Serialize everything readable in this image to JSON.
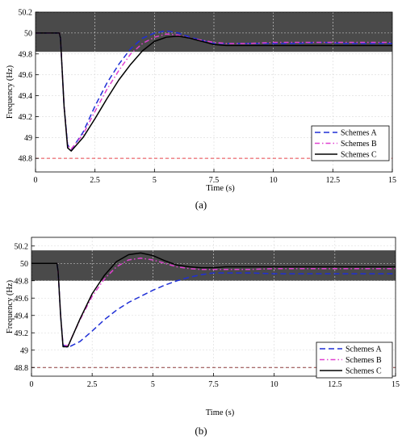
{
  "chart_data": [
    {
      "type": "line",
      "panel_label": "(a)",
      "xlabel": "Time (s)",
      "ylabel": "Frequency (Hz)",
      "xlim": [
        0,
        15
      ],
      "ylim": [
        48.67,
        50.2
      ],
      "xticks": [
        0,
        2.5,
        5,
        7.5,
        10,
        12.5,
        15
      ],
      "xtick_labels": [
        "0",
        "2.5",
        "5",
        "7.5",
        "10",
        "12.5",
        "15"
      ],
      "yticks": [
        48.8,
        49,
        49.2,
        49.4,
        49.6,
        49.8,
        50,
        50.2
      ],
      "ytick_labels": [
        "48.8",
        "49",
        "49.2",
        "49.4",
        "49.6",
        "49.8",
        "50",
        "50.2"
      ],
      "grid": true,
      "legend_position": "bottom-right",
      "band": {
        "from": 49.82,
        "to": 50.2,
        "color": "#4a4a4a"
      },
      "reference_line": {
        "y": 48.8,
        "color": "#e8434a",
        "style": "dashed"
      },
      "series": [
        {
          "name": "Schemes A",
          "color": "#1f2fd6",
          "style": "dashed",
          "x": [
            0,
            1,
            1.05,
            1.2,
            1.35,
            1.5,
            2,
            2.5,
            3,
            3.5,
            4,
            4.5,
            5,
            5.5,
            6,
            6.5,
            7,
            7.5,
            8,
            9,
            10,
            11,
            12,
            13,
            14,
            15
          ],
          "y": [
            50,
            50,
            49.95,
            49.3,
            48.93,
            48.88,
            49.05,
            49.3,
            49.52,
            49.7,
            49.85,
            49.95,
            50.0,
            50.02,
            50.0,
            49.96,
            49.93,
            49.9,
            49.9,
            49.9,
            49.9,
            49.9,
            49.91,
            49.9,
            49.9,
            49.9
          ]
        },
        {
          "name": "Schemes B",
          "color": "#e040d0",
          "style": "dashdot",
          "x": [
            0,
            1,
            1.05,
            1.2,
            1.35,
            1.5,
            2,
            2.5,
            3,
            3.5,
            4,
            4.5,
            5,
            5.5,
            6,
            6.5,
            7,
            7.5,
            8,
            9,
            10,
            11,
            12,
            13,
            14,
            15
          ],
          "y": [
            50,
            50,
            49.95,
            49.3,
            48.92,
            48.89,
            49.03,
            49.25,
            49.46,
            49.64,
            49.8,
            49.9,
            49.96,
            49.99,
            49.98,
            49.95,
            49.93,
            49.91,
            49.9,
            49.9,
            49.91,
            49.91,
            49.91,
            49.91,
            49.91,
            49.91
          ]
        },
        {
          "name": "Schemes C",
          "color": "#000000",
          "style": "solid",
          "x": [
            0,
            1,
            1.05,
            1.2,
            1.35,
            1.5,
            2,
            2.5,
            3,
            3.5,
            4,
            4.5,
            5,
            5.5,
            6,
            6.5,
            7,
            7.5,
            8,
            9,
            10,
            11,
            12,
            13,
            14,
            15
          ],
          "y": [
            50,
            50,
            49.95,
            49.3,
            48.9,
            48.87,
            49.0,
            49.18,
            49.37,
            49.55,
            49.7,
            49.83,
            49.92,
            49.96,
            49.97,
            49.95,
            49.92,
            49.89,
            49.88,
            49.88,
            49.88,
            49.88,
            49.88,
            49.88,
            49.88,
            49.88
          ]
        }
      ]
    },
    {
      "type": "line",
      "panel_label": "(b)",
      "xlabel": "Time (s)",
      "ylabel": "Frequency (Hz)",
      "xlim": [
        0,
        15
      ],
      "ylim": [
        48.7,
        50.3
      ],
      "xticks": [
        0,
        2.5,
        5,
        7.5,
        10,
        12.5,
        15
      ],
      "xtick_labels": [
        "0",
        "2.5",
        "5",
        "7.5",
        "10",
        "12.5",
        "15"
      ],
      "yticks": [
        48.8,
        49,
        49.2,
        49.4,
        49.6,
        49.8,
        50,
        50.2
      ],
      "ytick_labels": [
        "48.8",
        "49",
        "49.2",
        "49.4",
        "49.6",
        "49.8",
        "50",
        "50.2"
      ],
      "grid": true,
      "legend_position": "bottom-right",
      "band": {
        "from": 49.8,
        "to": 50.15,
        "color": "#4a4a4a"
      },
      "reference_line": {
        "y": 48.8,
        "color": "#8b3a3a",
        "style": "dashed"
      },
      "series": [
        {
          "name": "Schemes A",
          "color": "#1f2fd6",
          "style": "dashed",
          "x": [
            0,
            1.05,
            1.1,
            1.2,
            1.3,
            1.5,
            2,
            2.5,
            3,
            3.5,
            4,
            4.5,
            5,
            5.5,
            6,
            6.5,
            7,
            7.5,
            8,
            9,
            10,
            11,
            12,
            13,
            14,
            15
          ],
          "y": [
            50,
            50,
            49.9,
            49.4,
            49.06,
            49.03,
            49.1,
            49.22,
            49.35,
            49.46,
            49.55,
            49.62,
            49.69,
            49.75,
            49.8,
            49.84,
            49.87,
            49.89,
            49.89,
            49.89,
            49.88,
            49.88,
            49.88,
            49.88,
            49.88,
            49.88
          ]
        },
        {
          "name": "Schemes B",
          "color": "#e040d0",
          "style": "dashdot",
          "x": [
            0,
            1.05,
            1.1,
            1.2,
            1.3,
            1.5,
            2,
            2.5,
            3,
            3.5,
            4,
            4.5,
            5,
            5.5,
            6,
            6.5,
            7,
            7.5,
            8,
            9,
            10,
            11,
            12,
            13,
            14,
            15
          ],
          "y": [
            50,
            50,
            49.9,
            49.4,
            49.06,
            49.05,
            49.35,
            49.62,
            49.82,
            49.96,
            50.04,
            50.06,
            50.04,
            50.0,
            49.96,
            49.94,
            49.93,
            49.93,
            49.93,
            49.93,
            49.94,
            49.94,
            49.94,
            49.94,
            49.94,
            49.94
          ]
        },
        {
          "name": "Schemes C",
          "color": "#000000",
          "style": "solid",
          "x": [
            0,
            1.05,
            1.1,
            1.2,
            1.3,
            1.5,
            2,
            2.5,
            3,
            3.5,
            4,
            4.5,
            5,
            5.5,
            6,
            6.5,
            7,
            7.5,
            8,
            9,
            10,
            11,
            12,
            13,
            14,
            15
          ],
          "y": [
            50,
            50,
            49.9,
            49.4,
            49.04,
            49.04,
            49.36,
            49.65,
            49.86,
            50.02,
            50.1,
            50.12,
            50.09,
            50.03,
            49.98,
            49.96,
            49.95,
            49.95,
            49.96,
            49.96,
            49.96,
            49.96,
            49.96,
            49.96,
            49.96,
            49.96
          ]
        }
      ]
    }
  ]
}
